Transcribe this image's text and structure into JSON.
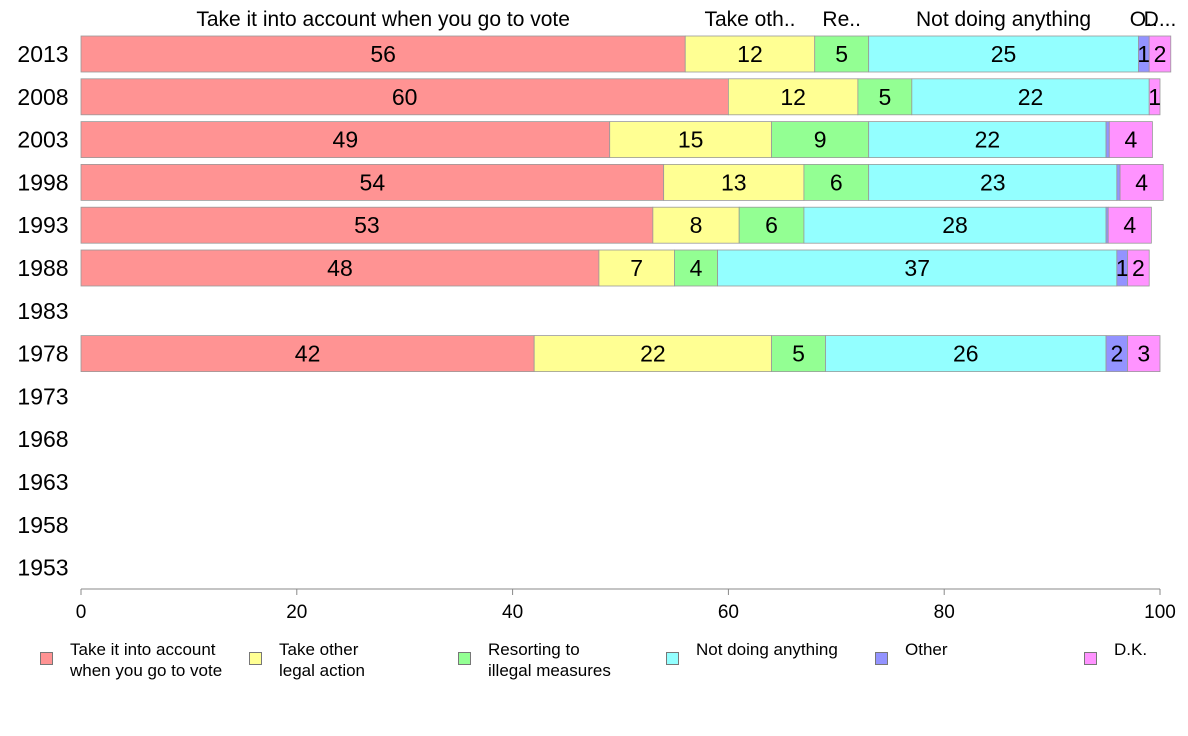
{
  "chart_data": {
    "type": "bar",
    "orientation": "horizontal",
    "stacked": true,
    "categories": [
      "2013",
      "2008",
      "2003",
      "1998",
      "1993",
      "1988",
      "1983",
      "1978",
      "1973",
      "1968",
      "1963",
      "1958",
      "1953"
    ],
    "series": [
      {
        "name": "Take it into account when you go to vote",
        "color": "#ff9393",
        "values": [
          56,
          60,
          49,
          54,
          53,
          48,
          null,
          42,
          null,
          null,
          null,
          null,
          null
        ]
      },
      {
        "name": "Take other legal action",
        "color": "#ffff93",
        "values": [
          12,
          12,
          15,
          13,
          8,
          7,
          null,
          22,
          null,
          null,
          null,
          null,
          null
        ]
      },
      {
        "name": "Resorting to illegal measures",
        "color": "#93ff93",
        "values": [
          5,
          5,
          9,
          6,
          6,
          4,
          null,
          5,
          null,
          null,
          null,
          null,
          null
        ]
      },
      {
        "name": "Not doing anything",
        "color": "#93ffff",
        "values": [
          25,
          22,
          22,
          23,
          28,
          37,
          null,
          26,
          null,
          null,
          null,
          null,
          null
        ]
      },
      {
        "name": "Other",
        "color": "#9393ff",
        "values": [
          1,
          0,
          0.3,
          0.3,
          0.2,
          1,
          null,
          2,
          null,
          null,
          null,
          null,
          null
        ]
      },
      {
        "name": "D.K.",
        "color": "#ff93ff",
        "values": [
          2,
          1,
          4,
          4,
          4,
          2,
          null,
          3,
          null,
          null,
          null,
          null,
          null
        ]
      }
    ],
    "bar_labels": [
      [
        "56",
        "60",
        "49",
        "54",
        "53",
        "48",
        "",
        "42",
        "",
        "",
        "",
        "",
        ""
      ],
      [
        "12",
        "12",
        "15",
        "13",
        "8",
        "7",
        "",
        "22",
        "",
        "",
        "",
        "",
        ""
      ],
      [
        "5",
        "5",
        "9",
        "6",
        "6",
        "4",
        "",
        "5",
        "",
        "",
        "",
        "",
        ""
      ],
      [
        "25",
        "22",
        "22",
        "23",
        "28",
        "37",
        "",
        "26",
        "",
        "",
        "",
        "",
        ""
      ],
      [
        "1",
        "",
        "",
        "",
        "",
        "1",
        "",
        "2",
        "",
        "",
        "",
        "",
        ""
      ],
      [
        "2",
        "1",
        "4",
        "4",
        "4",
        "2",
        "",
        "3",
        "",
        "",
        "",
        "",
        ""
      ]
    ],
    "top_labels": [
      "Take it into account when you go to vote",
      "Take oth..",
      "Re..",
      "Not doing anything",
      "O..",
      "D..."
    ],
    "xlim": [
      0,
      100
    ],
    "xticks": [
      "0",
      "20",
      "40",
      "60",
      "80",
      "100"
    ],
    "grid": false,
    "legend_position": "bottom"
  },
  "legend": [
    {
      "label": "Take it into account\nwhen you go to vote",
      "color": "#ff9393"
    },
    {
      "label": "Take other\nlegal action",
      "color": "#ffff93"
    },
    {
      "label": "Resorting to\nillegal measures",
      "color": "#93ff93"
    },
    {
      "label": "Not doing anything",
      "color": "#93ffff"
    },
    {
      "label": "Other",
      "color": "#9393ff"
    },
    {
      "label": "D.K.",
      "color": "#ff93ff"
    }
  ]
}
